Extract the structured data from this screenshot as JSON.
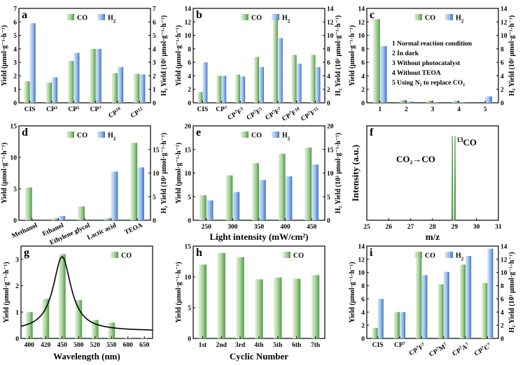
{
  "colors": {
    "co_light": "#e3f1dc",
    "co_dark": "#4f9a47",
    "h2_light": "#d9e7f8",
    "h2_dark": "#3f74c7",
    "curve": "#000000",
    "axis": "#000000"
  },
  "legend": {
    "co": "CO",
    "h2": "H",
    "h2_sub": "2"
  },
  "chart_data": [
    {
      "id": "a",
      "type": "bar",
      "label": "a",
      "categories": [
        {
          "base": "CIS"
        },
        {
          "base": "CP",
          "sup": "3"
        },
        {
          "base": "CP",
          "sup": "5"
        },
        {
          "base": "CP",
          "sup": "7"
        },
        {
          "base": "CP",
          "sup": "10"
        },
        {
          "base": "CP",
          "sup": "12"
        }
      ],
      "series": [
        {
          "name": "CO",
          "axis": "left",
          "values": [
            1.6,
            1.5,
            3.1,
            4.0,
            2.2,
            2.15
          ]
        },
        {
          "name": "H2",
          "axis": "right",
          "values": [
            5.9,
            1.9,
            3.7,
            4.0,
            2.65,
            2.1
          ]
        }
      ],
      "ylabel": "Yield (μmol·g⁻¹·h⁻¹)",
      "y2label": "H₂ Yield (10² μmol·g⁻¹·h⁻¹)",
      "ylim": [
        0,
        7
      ],
      "y2lim": [
        0,
        7
      ],
      "yticks": [
        "0",
        "1",
        "2",
        "3",
        "4",
        "5",
        "6",
        "7"
      ],
      "y2ticks": [
        "0",
        "1",
        "2",
        "3",
        "4",
        "5",
        "6",
        "7"
      ],
      "xlabel": "",
      "legend_position": "top"
    },
    {
      "id": "b",
      "type": "bar",
      "label": "b",
      "categories": [
        {
          "base": "CIS"
        },
        {
          "base": "CP",
          "sup": "7"
        },
        {
          "base": "CP",
          "sup": "7",
          "base2": "F",
          "sup2": "3"
        },
        {
          "base": "CP",
          "sup": "7",
          "base2": "F",
          "sup2": "5"
        },
        {
          "base": "CP",
          "sup": "7",
          "base2": "F",
          "sup2": "7"
        },
        {
          "base": "CP",
          "sup": "7",
          "base2": "F",
          "sup2": "10"
        },
        {
          "base": "CP",
          "sup": "7",
          "base2": "F",
          "sup2": "15"
        }
      ],
      "series": [
        {
          "name": "CO",
          "axis": "left",
          "values": [
            1.6,
            4.0,
            4.2,
            6.8,
            12.4,
            7.1,
            7.1
          ]
        },
        {
          "name": "H2",
          "axis": "right",
          "values": [
            6.0,
            4.0,
            3.9,
            5.3,
            9.6,
            5.8,
            5.3
          ]
        }
      ],
      "ylabel": "Yield (μmol·g⁻¹·h⁻¹)",
      "y2label": "H₂ Yield (10² μmol·g⁻¹·h⁻¹)",
      "ylim": [
        0,
        14
      ],
      "y2lim": [
        0,
        14
      ],
      "yticks": [
        "0",
        "2",
        "4",
        "6",
        "8",
        "10",
        "12",
        "14"
      ],
      "y2ticks": [
        "0",
        "2",
        "4",
        "6",
        "8",
        "10",
        "12",
        "14"
      ],
      "xlabel": "",
      "legend_position": "top"
    },
    {
      "id": "c",
      "type": "bar",
      "label": "c",
      "categories": [
        {
          "base": "1"
        },
        {
          "base": "2"
        },
        {
          "base": "3"
        },
        {
          "base": "4"
        },
        {
          "base": "5"
        }
      ],
      "series": [
        {
          "name": "CO",
          "axis": "left",
          "values": [
            12.4,
            0.4,
            0.3,
            0.3,
            0.0
          ]
        },
        {
          "name": "H2",
          "axis": "right",
          "values": [
            8.4,
            0.2,
            0.1,
            0.1,
            0.95
          ]
        }
      ],
      "ylabel": "Yield (μmol·g⁻¹·h⁻¹)",
      "y2label": "H₂ Yield (10² μmol·g⁻¹·h⁻¹)",
      "ylim": [
        0,
        14
      ],
      "y2lim": [
        0,
        14
      ],
      "yticks": [
        "0",
        "2",
        "4",
        "6",
        "8",
        "10",
        "12",
        "14"
      ],
      "y2ticks": [
        "0",
        "2",
        "4",
        "6",
        "8",
        "10",
        "12",
        "14"
      ],
      "xlabel": "",
      "legend_position": "top",
      "notes": [
        "1 Normal reaction condition",
        "2 In dark",
        "3 Without photocatalyst",
        "4 Without TEOA",
        "5 Using N₂ to replace CO₂"
      ]
    },
    {
      "id": "d",
      "type": "bar",
      "label": "d",
      "categories": [
        {
          "base": "Methanol"
        },
        {
          "base": "Ethanol"
        },
        {
          "base": "Ethylene glycol"
        },
        {
          "base": "Lactic acid"
        },
        {
          "base": "TEOA"
        }
      ],
      "series": [
        {
          "name": "CO",
          "axis": "left",
          "values": [
            5.2,
            0.3,
            2.2,
            0.3,
            12.3
          ]
        },
        {
          "name": "H2",
          "axis": "right",
          "values": [
            0.0,
            0.9,
            0.0,
            10.3,
            11.2
          ]
        }
      ],
      "ylabel": "Yield (μmol·g⁻¹·h⁻¹)",
      "y2label": "H₂ Yield (10² μmol·g⁻¹·h⁻¹)",
      "ylim": [
        0,
        15
      ],
      "y2lim": [
        0,
        20
      ],
      "yticks": [
        "0",
        "5",
        "10",
        "15"
      ],
      "y2ticks": [
        "0",
        "5",
        "10",
        "15"
      ],
      "xlabel": "",
      "legend_position": "top",
      "rotate_x": true
    },
    {
      "id": "e",
      "type": "bar",
      "label": "e",
      "categories": [
        {
          "base": "250"
        },
        {
          "base": "300"
        },
        {
          "base": "350"
        },
        {
          "base": "400"
        },
        {
          "base": "450"
        }
      ],
      "series": [
        {
          "name": "CO",
          "axis": "left",
          "values": [
            5.3,
            9.5,
            12.1,
            14.1,
            15.4
          ]
        },
        {
          "name": "H2",
          "axis": "right",
          "values": [
            4.2,
            6.0,
            8.5,
            9.3,
            11.8
          ]
        }
      ],
      "ylabel": "Yield (μmol·g⁻¹·h⁻¹)",
      "y2label": "H₂ Yield (10² μmol·g⁻¹·h⁻¹)",
      "ylim": [
        0,
        20
      ],
      "y2lim": [
        0,
        20
      ],
      "yticks": [
        "0",
        "5",
        "10",
        "15",
        "20"
      ],
      "y2ticks": [
        "0",
        "5",
        "10",
        "15",
        "20"
      ],
      "xlabel": "Light intensity (mW/cm²)",
      "legend_position": "top"
    },
    {
      "id": "f",
      "type": "line",
      "label": "f",
      "x": [
        28.88,
        28.9,
        28.92,
        29.0,
        29.02,
        29.04
      ],
      "y": [
        0.0,
        0.98,
        0.0,
        0.0,
        0.98,
        0.0
      ],
      "xlim": [
        25,
        31
      ],
      "ylim": [
        0,
        1.1
      ],
      "xticks": [
        "25",
        "26",
        "27",
        "28",
        "29",
        "30",
        "31"
      ],
      "xlabel": "m/z",
      "ylabel": "Intensity (a.u.)",
      "annotation": "CO₂→CO",
      "peak_label": "13",
      "peak_label_base": "CO"
    },
    {
      "id": "g",
      "type": "bar",
      "label": "g",
      "categories": [
        {
          "base": "400"
        },
        {
          "base": "420"
        },
        {
          "base": "450"
        },
        {
          "base": "500"
        },
        {
          "base": "520"
        },
        {
          "base": "550"
        },
        {
          "base": "600"
        },
        {
          "base": "650"
        }
      ],
      "series": [
        {
          "name": "CO",
          "axis": "left",
          "values": [
            1.0,
            1.5,
            3.2,
            1.45,
            0.7,
            0.6,
            0.02,
            0.02
          ]
        }
      ],
      "fit_curve": {
        "center_index": 2.0,
        "peak": 3.1,
        "width": 1.1,
        "baseline": 0.28
      },
      "ylabel": "Yield (μmol·g⁻¹·h⁻¹)",
      "ylim": [
        0,
        3.5
      ],
      "yticks": [
        "0",
        "1",
        "2",
        "3"
      ],
      "xlabel": "Wavelength (nm)",
      "legend_position": "top"
    },
    {
      "id": "h",
      "type": "bar",
      "label": "h",
      "categories": [
        {
          "base": "1st"
        },
        {
          "base": "2nd"
        },
        {
          "base": "3rd"
        },
        {
          "base": "4th"
        },
        {
          "base": "5th"
        },
        {
          "base": "6th"
        },
        {
          "base": "7th"
        }
      ],
      "series": [
        {
          "name": "CO",
          "axis": "left",
          "values": [
            12.0,
            13.9,
            13.2,
            9.6,
            9.9,
            9.7,
            10.3
          ]
        }
      ],
      "ylabel": "Yield (μmol·g⁻¹·h⁻¹)",
      "ylim": [
        0,
        15
      ],
      "yticks": [
        "0",
        "5",
        "10",
        "15"
      ],
      "xlabel": "Cyclic Number",
      "legend_position": "top"
    },
    {
      "id": "i",
      "type": "bar",
      "label": "i",
      "categories": [
        {
          "base": "CIS"
        },
        {
          "base": "CP",
          "sup": "7"
        },
        {
          "base": "CP",
          "sup": "7",
          "base2": "F",
          "sup2": "7"
        },
        {
          "base": "CP",
          "sup": "7",
          "base2": "M",
          "sup2": "7"
        },
        {
          "base": "CP",
          "sup": "7",
          "base2": "A",
          "sup2": "7"
        },
        {
          "base": "CP",
          "sup": "7",
          "base2": "C",
          "sup2": "7"
        }
      ],
      "series": [
        {
          "name": "CO",
          "axis": "left",
          "values": [
            1.6,
            4.0,
            12.4,
            8.2,
            11.2,
            8.4
          ]
        },
        {
          "name": "H2",
          "axis": "right",
          "values": [
            6.0,
            4.0,
            9.6,
            10.1,
            12.5,
            13.6
          ]
        }
      ],
      "ylabel": "Yield (μmol·g⁻¹·h⁻¹)",
      "y2label": "H₂ Yield (10² μmol·g⁻¹·h⁻¹)",
      "ylim": [
        0,
        14
      ],
      "y2lim": [
        0,
        14
      ],
      "yticks": [
        "0",
        "2",
        "4",
        "6",
        "8",
        "10",
        "12",
        "14"
      ],
      "y2ticks": [
        "0",
        "2",
        "4",
        "6",
        "8",
        "10",
        "12",
        "14"
      ],
      "xlabel": "",
      "legend_position": "top"
    }
  ]
}
